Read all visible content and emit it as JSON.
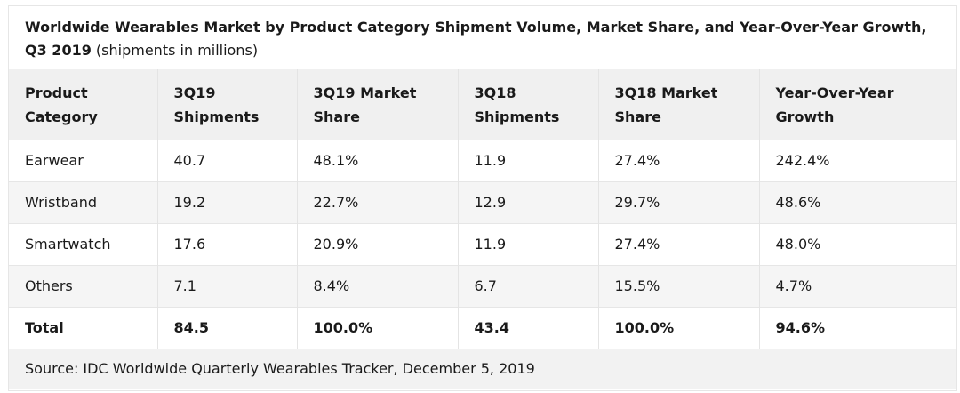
{
  "caption": {
    "title_bold": "Worldwide Wearables Market by Product Category Shipment Volume, Market Share, and Year-Over-Year Growth, Q3 2019",
    "title_suffix": " (shipments in millions)"
  },
  "table": {
    "headers": [
      [
        "Product",
        "Category"
      ],
      [
        "3Q19",
        "Shipments"
      ],
      [
        "3Q19 Market",
        "Share"
      ],
      [
        "3Q18",
        "Shipments"
      ],
      [
        "3Q18 Market",
        "Share"
      ],
      [
        "Year-Over-Year",
        "Growth"
      ]
    ],
    "rows": [
      [
        "Earwear",
        "40.7",
        "48.1%",
        "11.9",
        "27.4%",
        "242.4%"
      ],
      [
        "Wristband",
        "19.2",
        "22.7%",
        "12.9",
        "29.7%",
        "48.6%"
      ],
      [
        "Smartwatch",
        "17.6",
        "20.9%",
        "11.9",
        "27.4%",
        "48.0%"
      ],
      [
        "Others",
        "7.1",
        "8.4%",
        "6.7",
        "15.5%",
        "4.7%"
      ]
    ],
    "total": [
      "Total",
      "84.5",
      "100.0%",
      "43.4",
      "100.0%",
      "94.6%"
    ]
  },
  "source": "Source: IDC Worldwide Quarterly Wearables Tracker, December 5, 2019"
}
